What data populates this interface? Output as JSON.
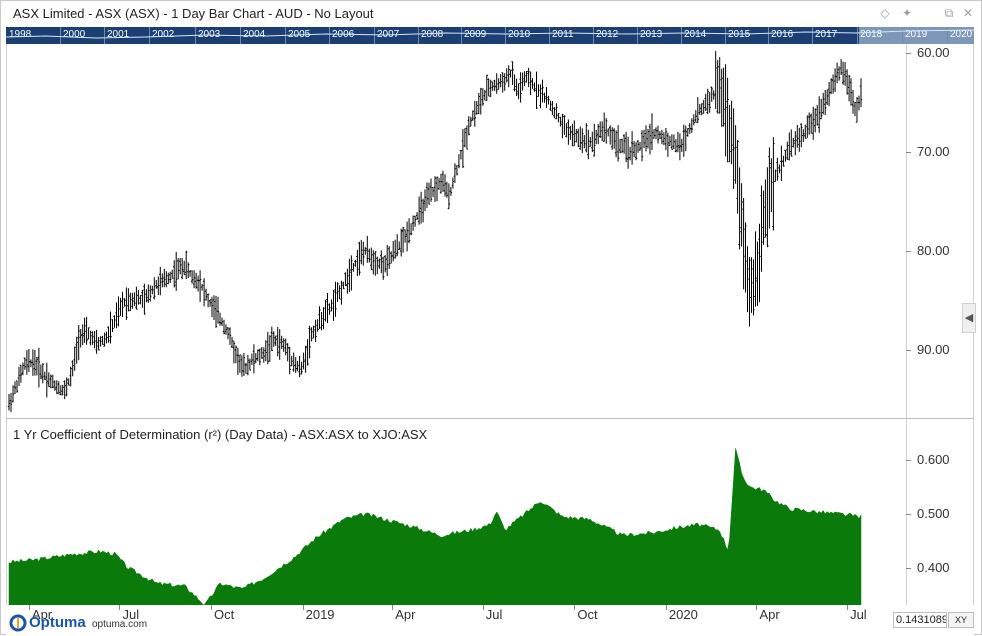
{
  "window": {
    "title": "ASX Limited - ASX (ASX) - 1 Day Bar Chart - AUD - No Layout",
    "buttons": [
      {
        "name": "diamond-icon",
        "glyph": "◇"
      },
      {
        "name": "pin-icon",
        "glyph": "✦"
      },
      {
        "name": "restore-icon",
        "glyph": "⧉"
      },
      {
        "name": "close-icon",
        "glyph": "✕"
      }
    ]
  },
  "navigator": {
    "years": [
      "1998",
      "2000",
      "2001",
      "2002",
      "2003",
      "2004",
      "2005",
      "2006",
      "2007",
      "2008",
      "2009",
      "2010",
      "2011",
      "2012",
      "2013",
      "2014",
      "2015",
      "2016",
      "2017",
      "2018",
      "2019",
      "2020"
    ],
    "highlight_from": "2018"
  },
  "price_panel": {
    "y_labels": [
      "90.00",
      "80.00",
      "70.00",
      "60.00"
    ]
  },
  "indicator_panel": {
    "label": "1 Yr Coefficient of Determination (r²) (Day Data) - ASX:ASX to XJO:ASX",
    "y_labels": [
      "0.600",
      "0.500",
      "0.400"
    ],
    "fill_color": "#0a7a0a"
  },
  "x_axis": {
    "labels": [
      "Apr",
      "Jul",
      "Oct",
      "2019",
      "Apr",
      "Jul",
      "Oct",
      "2020",
      "Apr",
      "Jul"
    ]
  },
  "footer": {
    "logo_text": "Optuma",
    "logo_url": "optuma.com",
    "readout": "0.1431089",
    "xy_button": "XY"
  },
  "chart_data": [
    {
      "type": "bar",
      "title": "ASX Limited - ASX (ASX) - 1 Day Bar Chart - AUD - No Layout",
      "ylim": [
        53.5,
        90.2
      ],
      "y_ticks": [
        60,
        70,
        80,
        90
      ],
      "x_range": [
        "2018-03-12",
        "2020-07-15"
      ],
      "series": [
        {
          "name": "ASX",
          "points": [
            [
              "2018-03-12",
              54.5
            ],
            [
              "2018-03-20",
              56.5
            ],
            [
              "2018-03-28",
              58.5
            ],
            [
              "2018-04-06",
              58.8
            ],
            [
              "2018-04-16",
              57.5
            ],
            [
              "2018-04-26",
              56.5
            ],
            [
              "2018-05-07",
              55.8
            ],
            [
              "2018-05-14",
              57.5
            ],
            [
              "2018-05-22",
              61.5
            ],
            [
              "2018-05-31",
              61.6
            ],
            [
              "2018-06-08",
              60.5
            ],
            [
              "2018-06-18",
              61.2
            ],
            [
              "2018-06-26",
              62.8
            ],
            [
              "2018-07-05",
              64.8
            ],
            [
              "2018-07-16",
              65.2
            ],
            [
              "2018-07-26",
              65.0
            ],
            [
              "2018-08-06",
              66.5
            ],
            [
              "2018-08-16",
              67.0
            ],
            [
              "2018-08-27",
              68.0
            ],
            [
              "2018-09-05",
              68.5
            ],
            [
              "2018-09-13",
              67.2
            ],
            [
              "2018-09-20",
              66.8
            ],
            [
              "2018-09-28",
              65.0
            ],
            [
              "2018-10-08",
              63.5
            ],
            [
              "2018-10-17",
              62.0
            ],
            [
              "2018-10-26",
              59.5
            ],
            [
              "2018-11-02",
              58.0
            ],
            [
              "2018-11-12",
              59.0
            ],
            [
              "2018-11-22",
              59.5
            ],
            [
              "2018-12-03",
              61.0
            ],
            [
              "2018-12-13",
              60.5
            ],
            [
              "2018-12-24",
              58.5
            ],
            [
              "2018-12-31",
              58.0
            ],
            [
              "2019-01-10",
              61.5
            ],
            [
              "2019-01-22",
              63.5
            ],
            [
              "2019-01-31",
              64.5
            ],
            [
              "2019-02-11",
              66.5
            ],
            [
              "2019-02-21",
              68.5
            ],
            [
              "2019-03-04",
              70.0
            ],
            [
              "2019-03-14",
              69.0
            ],
            [
              "2019-03-25",
              68.5
            ],
            [
              "2019-04-04",
              70.0
            ],
            [
              "2019-04-15",
              71.5
            ],
            [
              "2019-04-26",
              73.5
            ],
            [
              "2019-05-08",
              75.5
            ],
            [
              "2019-05-21",
              77.0
            ],
            [
              "2019-05-28",
              75.5
            ],
            [
              "2019-06-07",
              79.0
            ],
            [
              "2019-06-18",
              83.0
            ],
            [
              "2019-06-28",
              85.0
            ],
            [
              "2019-07-08",
              86.5
            ],
            [
              "2019-07-19",
              87.0
            ],
            [
              "2019-07-30",
              88.0
            ],
            [
              "2019-08-05",
              86.0
            ],
            [
              "2019-08-13",
              87.5
            ],
            [
              "2019-08-23",
              86.5
            ],
            [
              "2019-09-02",
              85.5
            ],
            [
              "2019-09-12",
              84.0
            ],
            [
              "2019-09-20",
              82.5
            ],
            [
              "2019-10-03",
              81.5
            ],
            [
              "2019-10-18",
              81.0
            ],
            [
              "2019-10-31",
              82.5
            ],
            [
              "2019-11-12",
              81.0
            ],
            [
              "2019-11-25",
              80.0
            ],
            [
              "2019-12-06",
              80.5
            ],
            [
              "2019-12-19",
              82.0
            ],
            [
              "2020-01-06",
              81.0
            ],
            [
              "2020-01-16",
              80.5
            ],
            [
              "2020-01-30",
              83.5
            ],
            [
              "2020-02-11",
              85.0
            ],
            [
              "2020-02-24",
              86.5
            ],
            [
              "2020-03-04",
              83.0
            ],
            [
              "2020-03-11",
              79.0
            ],
            [
              "2020-03-18",
              72.0
            ],
            [
              "2020-03-24",
              66.0
            ],
            [
              "2020-03-30",
              67.0
            ],
            [
              "2020-04-08",
              73.0
            ],
            [
              "2020-04-20",
              77.5
            ],
            [
              "2020-05-04",
              80.5
            ],
            [
              "2020-05-20",
              82.0
            ],
            [
              "2020-06-03",
              84.0
            ],
            [
              "2020-06-15",
              86.5
            ],
            [
              "2020-06-26",
              88.5
            ],
            [
              "2020-07-02",
              87.0
            ],
            [
              "2020-07-10",
              84.0
            ],
            [
              "2020-07-15",
              86.0
            ]
          ]
        }
      ]
    },
    {
      "type": "area",
      "title": "1 Yr Coefficient of Determination (r²) (Day Data) - ASX:ASX to XJO:ASX",
      "ylim": [
        0.33,
        0.655
      ],
      "y_ticks": [
        0.4,
        0.5,
        0.6
      ],
      "x_range": [
        "2018-03-12",
        "2020-07-15"
      ],
      "series": [
        {
          "name": "r²",
          "points": [
            [
              "2018-03-12",
              0.41
            ],
            [
              "2018-04-10",
              0.415
            ],
            [
              "2018-05-15",
              0.425
            ],
            [
              "2018-06-12",
              0.43
            ],
            [
              "2018-06-27",
              0.425
            ],
            [
              "2018-07-09",
              0.4
            ],
            [
              "2018-08-08",
              0.37
            ],
            [
              "2018-09-05",
              0.365
            ],
            [
              "2018-09-25",
              0.33
            ],
            [
              "2018-10-10",
              0.37
            ],
            [
              "2018-11-01",
              0.36
            ],
            [
              "2018-11-23",
              0.38
            ],
            [
              "2018-12-24",
              0.42
            ],
            [
              "2019-01-14",
              0.455
            ],
            [
              "2019-02-11",
              0.49
            ],
            [
              "2019-03-05",
              0.5
            ],
            [
              "2019-03-25",
              0.49
            ],
            [
              "2019-04-15",
              0.48
            ],
            [
              "2019-05-20",
              0.46
            ],
            [
              "2019-06-19",
              0.47
            ],
            [
              "2019-07-08",
              0.48
            ],
            [
              "2019-07-15",
              0.505
            ],
            [
              "2019-07-23",
              0.47
            ],
            [
              "2019-08-12",
              0.5
            ],
            [
              "2019-08-28",
              0.525
            ],
            [
              "2019-09-19",
              0.495
            ],
            [
              "2019-10-17",
              0.49
            ],
            [
              "2019-11-18",
              0.46
            ],
            [
              "2019-12-19",
              0.465
            ],
            [
              "2020-01-13",
              0.475
            ],
            [
              "2020-02-03",
              0.48
            ],
            [
              "2020-02-24",
              0.47
            ],
            [
              "2020-03-04",
              0.43
            ],
            [
              "2020-03-11",
              0.62
            ],
            [
              "2020-03-18",
              0.57
            ],
            [
              "2020-03-26",
              0.55
            ],
            [
              "2020-04-08",
              0.545
            ],
            [
              "2020-04-20",
              0.525
            ],
            [
              "2020-05-04",
              0.51
            ],
            [
              "2020-05-27",
              0.505
            ],
            [
              "2020-06-24",
              0.5
            ],
            [
              "2020-07-15",
              0.495
            ]
          ]
        }
      ]
    }
  ]
}
